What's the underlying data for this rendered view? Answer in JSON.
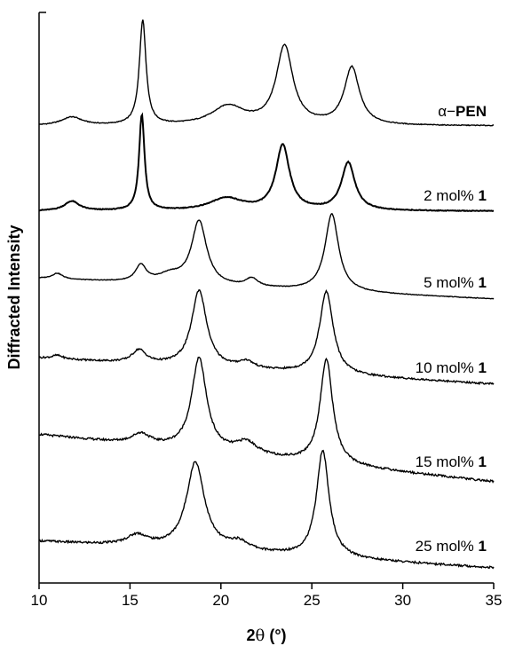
{
  "chart_data": {
    "type": "line",
    "title": "",
    "xlabel_main": "2",
    "xlabel_symbol": "θ",
    "xlabel_unit": " (°)",
    "ylabel": "Diffracted Intensity",
    "xlim": [
      10,
      35
    ],
    "x_ticks": [
      10,
      15,
      20,
      25,
      30,
      35
    ],
    "y_ticks_shown": false,
    "grid": false,
    "series": [
      {
        "label_prefix": "α−",
        "label_bold": "PEN",
        "label_suffix": "",
        "baseline": 0.0,
        "peaks": [
          [
            11.8,
            0.08,
            0.7
          ],
          [
            15.7,
            1.0,
            0.22
          ],
          [
            20.4,
            0.18,
            1.1
          ],
          [
            23.5,
            0.75,
            0.55
          ],
          [
            27.2,
            0.55,
            0.5
          ]
        ],
        "slope": 0.0
      },
      {
        "label_prefix": "2 mol% ",
        "label_bold": "1",
        "label_suffix": "",
        "baseline": 0.0,
        "peaks": [
          [
            11.8,
            0.1,
            0.5
          ],
          [
            15.65,
            1.0,
            0.18
          ],
          [
            20.3,
            0.13,
            1.1
          ],
          [
            23.4,
            0.68,
            0.45
          ],
          [
            27.0,
            0.5,
            0.45
          ]
        ],
        "slope": 0.0
      },
      {
        "label_prefix": "5 mol% ",
        "label_bold": "1",
        "label_suffix": "",
        "baseline": 0.0,
        "peaks": [
          [
            11.0,
            0.07,
            0.35
          ],
          [
            15.6,
            0.2,
            0.35
          ],
          [
            17.2,
            0.1,
            0.8
          ],
          [
            18.8,
            0.78,
            0.5
          ],
          [
            21.7,
            0.1,
            0.4
          ],
          [
            26.1,
            0.95,
            0.45
          ]
        ],
        "slope": 0.01
      },
      {
        "label_prefix": "10 mol% ",
        "label_bold": "1",
        "label_suffix": "",
        "baseline": 0.0,
        "peaks": [
          [
            11.0,
            0.04,
            0.35
          ],
          [
            15.5,
            0.15,
            0.45
          ],
          [
            18.8,
            0.88,
            0.5
          ],
          [
            21.4,
            0.08,
            0.5
          ],
          [
            25.8,
            0.95,
            0.45
          ]
        ],
        "slope": 0.012
      },
      {
        "label_prefix": "15 mol% ",
        "label_bold": "1",
        "label_suffix": "",
        "baseline": 0.0,
        "peaks": [
          [
            15.6,
            0.1,
            0.6
          ],
          [
            18.8,
            0.88,
            0.5
          ],
          [
            21.4,
            0.12,
            0.7
          ],
          [
            25.8,
            1.0,
            0.42
          ]
        ],
        "slope": 0.018
      },
      {
        "label_prefix": "25 mol% ",
        "label_bold": "1",
        "label_suffix": "",
        "baseline": 0.0,
        "peaks": [
          [
            15.4,
            0.1,
            0.7
          ],
          [
            18.6,
            0.82,
            0.6
          ],
          [
            21.0,
            0.08,
            0.7
          ],
          [
            25.6,
            1.0,
            0.42
          ]
        ],
        "slope": 0.01
      }
    ]
  }
}
